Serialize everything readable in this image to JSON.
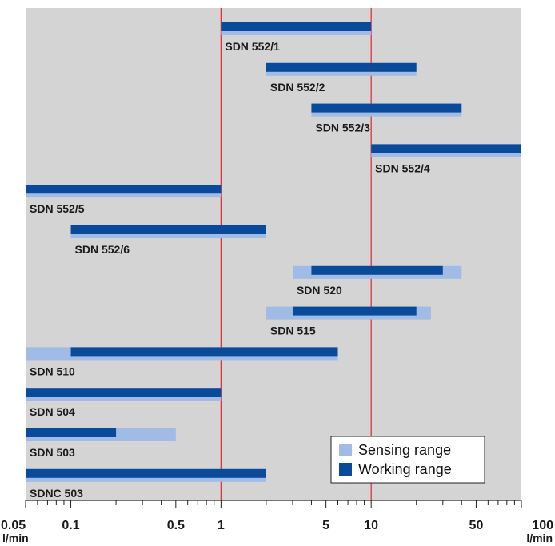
{
  "chart_data": {
    "type": "bar",
    "orientation": "horizontal-range",
    "x_scale": "log",
    "xlim": [
      0.05,
      100
    ],
    "x_ticks": [
      {
        "value": 0.05,
        "label": "0.05"
      },
      {
        "value": 0.1,
        "label": "0.1"
      },
      {
        "value": 0.5,
        "label": "0.5"
      },
      {
        "value": 1,
        "label": "1"
      },
      {
        "value": 5,
        "label": "5"
      },
      {
        "value": 10,
        "label": "10"
      },
      {
        "value": 50,
        "label": "50"
      },
      {
        "value": 100,
        "label": "100"
      }
    ],
    "x_unit_left": "l/min",
    "x_unit_right": "l/min",
    "reference_lines": [
      1,
      10
    ],
    "colors": {
      "plot_background": "#d4d4d4",
      "sensing": "#9fbbe6",
      "working": "#0a4a9a",
      "reference_line": "#e0333a"
    },
    "series": [
      {
        "name": "Sensing range",
        "key": "sensing"
      },
      {
        "name": "Working range",
        "key": "working"
      }
    ],
    "categories": [
      "SDN 552/1",
      "SDN 552/2",
      "SDN 552/3",
      "SDN 552/4",
      "SDN 552/5",
      "SDN 552/6",
      "SDN 520",
      "SDN 515",
      "SDN 510",
      "SDN 504",
      "SDN 503",
      "SDNC 503"
    ],
    "rows": [
      {
        "label": "SDN 552/1",
        "sensing": [
          1,
          10
        ],
        "working": [
          1,
          10
        ]
      },
      {
        "label": "SDN 552/2",
        "sensing": [
          2,
          20
        ],
        "working": [
          2,
          20
        ]
      },
      {
        "label": "SDN 552/3",
        "sensing": [
          4,
          40
        ],
        "working": [
          4,
          40
        ]
      },
      {
        "label": "SDN 552/4",
        "sensing": [
          10,
          100
        ],
        "working": [
          10,
          100
        ]
      },
      {
        "label": "SDN 552/5",
        "sensing": [
          0.05,
          1
        ],
        "working": [
          0.05,
          1
        ]
      },
      {
        "label": "SDN 552/6",
        "sensing": [
          0.1,
          2
        ],
        "working": [
          0.1,
          2
        ]
      },
      {
        "label": "SDN 520",
        "sensing": [
          3,
          40
        ],
        "working": [
          4,
          30
        ]
      },
      {
        "label": "SDN 515",
        "sensing": [
          2,
          25
        ],
        "working": [
          3,
          20
        ]
      },
      {
        "label": "SDN 510",
        "sensing": [
          0.05,
          6
        ],
        "working": [
          0.1,
          6
        ]
      },
      {
        "label": "SDN 504",
        "sensing": [
          0.05,
          1
        ],
        "working": [
          0.05,
          1
        ]
      },
      {
        "label": "SDN 503",
        "sensing": [
          0.05,
          0.5
        ],
        "working": [
          0.05,
          0.2
        ]
      },
      {
        "label": "SDNC 503",
        "sensing": [
          0.05,
          2
        ],
        "working": [
          0.05,
          2
        ]
      }
    ],
    "legend": {
      "placement": "bottom-right",
      "items": [
        {
          "label": "Sensing range",
          "color_key": "sensing"
        },
        {
          "label": "Working range",
          "color_key": "working"
        }
      ]
    }
  }
}
